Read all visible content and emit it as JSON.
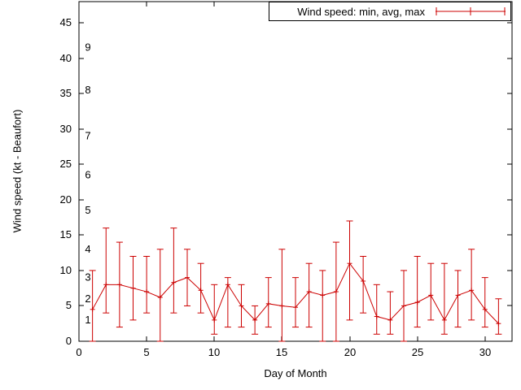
{
  "chart_data": {
    "type": "line",
    "legend": {
      "label": "Wind speed: min, avg, max",
      "position": "top-right",
      "box": true
    },
    "xlabel": "Day of Month",
    "ylabel": "Wind speed (kt - Beaufort)",
    "xlim": [
      0,
      32
    ],
    "ylim": [
      0,
      48
    ],
    "grid": false,
    "xticks": [
      0,
      5,
      10,
      15,
      20,
      25,
      30
    ],
    "yticks": [
      0,
      5,
      10,
      15,
      20,
      25,
      30,
      35,
      40,
      45
    ],
    "beaufort_ticks": [
      {
        "label": "1",
        "kt": 3
      },
      {
        "label": "2",
        "kt": 6
      },
      {
        "label": "3",
        "kt": 9
      },
      {
        "label": "4",
        "kt": 13
      },
      {
        "label": "5",
        "kt": 18.5
      },
      {
        "label": "6",
        "kt": 23.5
      },
      {
        "label": "7",
        "kt": 29
      },
      {
        "label": "8",
        "kt": 35.5
      },
      {
        "label": "9",
        "kt": 41.5
      }
    ],
    "days": [
      1,
      2,
      3,
      4,
      5,
      6,
      7,
      8,
      9,
      10,
      11,
      12,
      13,
      14,
      15,
      16,
      17,
      18,
      19,
      20,
      21,
      22,
      23,
      24,
      25,
      26,
      27,
      28,
      29,
      30,
      31
    ],
    "series": [
      {
        "name": "min",
        "values": [
          0,
          4,
          2,
          3,
          4,
          0,
          4,
          5,
          4,
          1,
          2,
          2,
          1,
          2,
          0,
          2,
          2,
          0,
          0,
          3,
          4,
          1,
          1,
          0,
          2,
          3,
          1,
          2,
          3,
          2,
          1
        ]
      },
      {
        "name": "avg",
        "values": [
          4.5,
          8,
          8,
          7.5,
          7,
          6.2,
          8.3,
          9,
          7.2,
          3,
          8,
          5,
          3,
          5.3,
          5,
          4.8,
          7,
          6.5,
          7,
          11,
          8.5,
          3.5,
          3,
          5,
          5.5,
          6.5,
          3,
          6.5,
          7.2,
          4.5,
          2.5
        ]
      },
      {
        "name": "max",
        "values": [
          10,
          16,
          14,
          12,
          12,
          13,
          16,
          13,
          11,
          8,
          9,
          8,
          5,
          9,
          13,
          9,
          11,
          10,
          14,
          17,
          12,
          8,
          7,
          10,
          12,
          11,
          11,
          10,
          13,
          9,
          6
        ]
      }
    ],
    "colors": {
      "series": "#cc0000",
      "axis": "#000000",
      "background": "#ffffff"
    }
  }
}
